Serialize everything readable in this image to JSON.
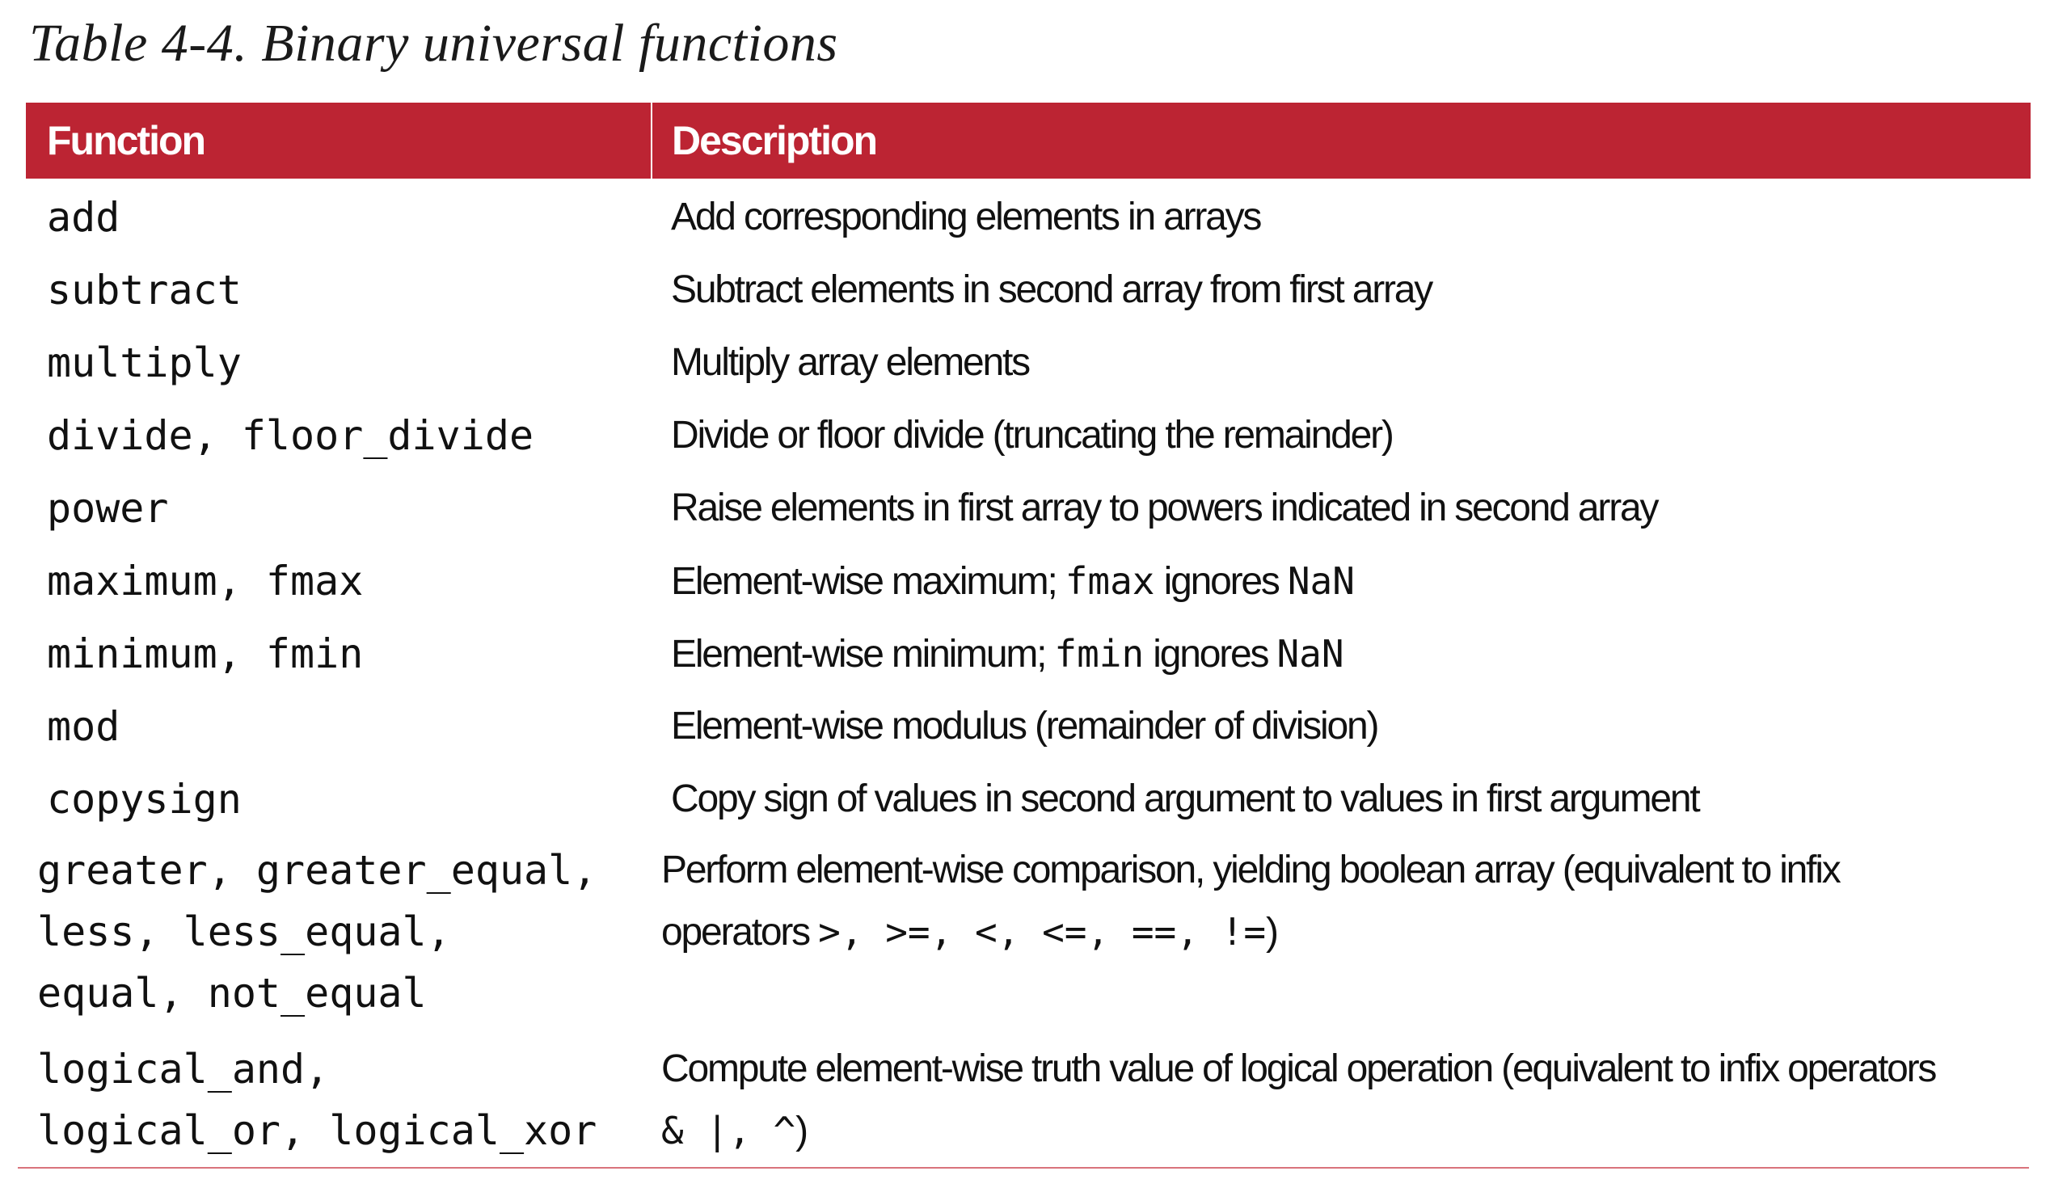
{
  "caption": "Table 4-4. Binary universal functions",
  "columns": {
    "function": "Function",
    "description": "Description"
  },
  "rows": [
    {
      "function": "add",
      "description": "Add corresponding elements in arrays"
    },
    {
      "function": "subtract",
      "description": "Subtract elements in second array from first array"
    },
    {
      "function": "multiply",
      "description": "Multiply array elements"
    },
    {
      "function": "divide, floor_divide",
      "description": "Divide or floor divide (truncating the remainder)"
    },
    {
      "function": "power",
      "description": "Raise elements in first array to powers indicated in second array"
    },
    {
      "function": "maximum, fmax",
      "description_pre": "Element-wise maximum; ",
      "description_code1": "fmax",
      "description_mid": " ignores ",
      "description_code2": "NaN"
    },
    {
      "function": "minimum, fmin",
      "description_pre": "Element-wise minimum; ",
      "description_code1": "fmin",
      "description_mid": " ignores ",
      "description_code2": "NaN"
    },
    {
      "function": "mod",
      "description": "Element-wise modulus (remainder of division)"
    },
    {
      "function": "copysign",
      "description": "Copy sign of values in second argument to values in first argument"
    },
    {
      "function_lines": [
        "greater, greater_equal,",
        "less, less_equal,",
        "equal, not_equal"
      ],
      "description_line1": "Perform element-wise comparison, yielding boolean array (equivalent to infix",
      "description_line2_pre": "operators ",
      "description_line2_code": ">, >=, <, <=, ==, !=",
      "description_line2_post": ")"
    },
    {
      "function_lines": [
        "logical_and,",
        "logical_or, logical_xor"
      ],
      "description_line1": "Compute element-wise truth value of logical operation (equivalent to infix operators",
      "description_line2_code": "& |, ^",
      "description_line2_post": ")"
    }
  ]
}
